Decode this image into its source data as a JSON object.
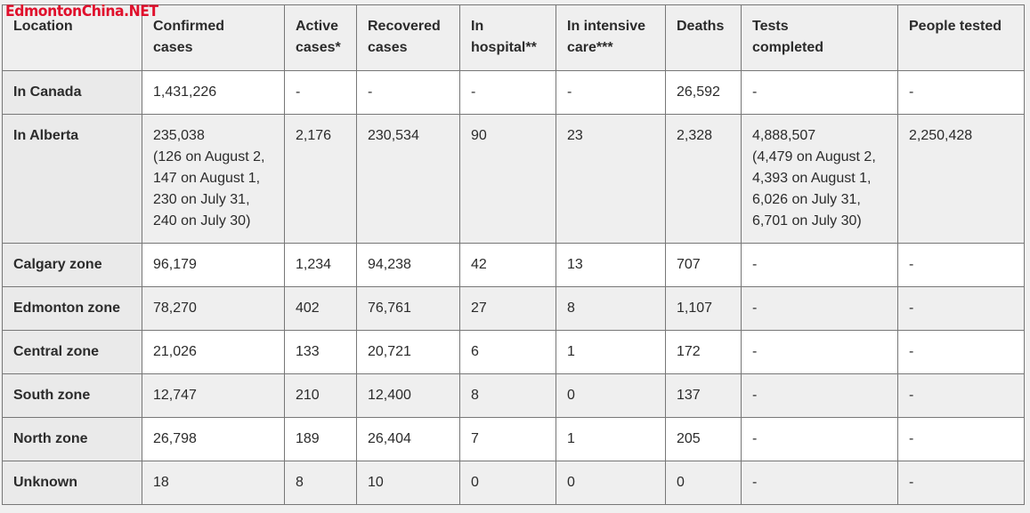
{
  "watermark": "EdmontonChina.NET",
  "headers": {
    "location": "Location",
    "confirmed_1": "Confirmed",
    "confirmed_2": "cases",
    "active_1": "Active",
    "active_2": "cases*",
    "recovered_1": "Recovered",
    "recovered_2": "cases",
    "hospital_1": "In",
    "hospital_2": "hospital**",
    "icu_1": "In intensive",
    "icu_2": "care***",
    "deaths": "Deaths",
    "tests_1": "Tests",
    "tests_2": "completed",
    "people": "People tested"
  },
  "rows": [
    {
      "location": "In Canada",
      "confirmed": "1,431,226",
      "active": "-",
      "recovered": "-",
      "hospital": "-",
      "icu": "-",
      "deaths": "26,592",
      "tests": "-",
      "people": "-"
    },
    {
      "location": "In Alberta",
      "confirmed_lines": [
        "235,038",
        "(126 on August 2,",
        "147 on August 1,",
        "230 on July 31,",
        "240 on July 30)"
      ],
      "active": "2,176",
      "recovered": "230,534",
      "hospital": "90",
      "icu": "23",
      "deaths": "2,328",
      "tests_lines": [
        "4,888,507",
        "(4,479 on August 2,",
        "4,393 on August 1,",
        "6,026 on July 31,",
        "6,701 on July 30)"
      ],
      "people": "2,250,428"
    },
    {
      "location": "Calgary zone",
      "confirmed": "96,179",
      "active": "1,234",
      "recovered": "94,238",
      "hospital": "42",
      "icu": "13",
      "deaths": "707",
      "tests": "-",
      "people": "-"
    },
    {
      "location": "Edmonton zone",
      "confirmed": "78,270",
      "active": "402",
      "recovered": "76,761",
      "hospital": "27",
      "icu": "8",
      "deaths": "1,107",
      "tests": "-",
      "people": "-"
    },
    {
      "location": "Central zone",
      "confirmed": "21,026",
      "active": "133",
      "recovered": "20,721",
      "hospital": "6",
      "icu": "1",
      "deaths": "172",
      "tests": "-",
      "people": "-"
    },
    {
      "location": "South zone",
      "confirmed": "12,747",
      "active": "210",
      "recovered": "12,400",
      "hospital": "8",
      "icu": "0",
      "deaths": "137",
      "tests": "-",
      "people": "-"
    },
    {
      "location": "North zone",
      "confirmed": "26,798",
      "active": "189",
      "recovered": "26,404",
      "hospital": "7",
      "icu": "1",
      "deaths": "205",
      "tests": "-",
      "people": "-"
    },
    {
      "location": "Unknown",
      "confirmed": "18",
      "active": "8",
      "recovered": "10",
      "hospital": "0",
      "icu": "0",
      "deaths": "0",
      "tests": "-",
      "people": "-"
    }
  ]
}
